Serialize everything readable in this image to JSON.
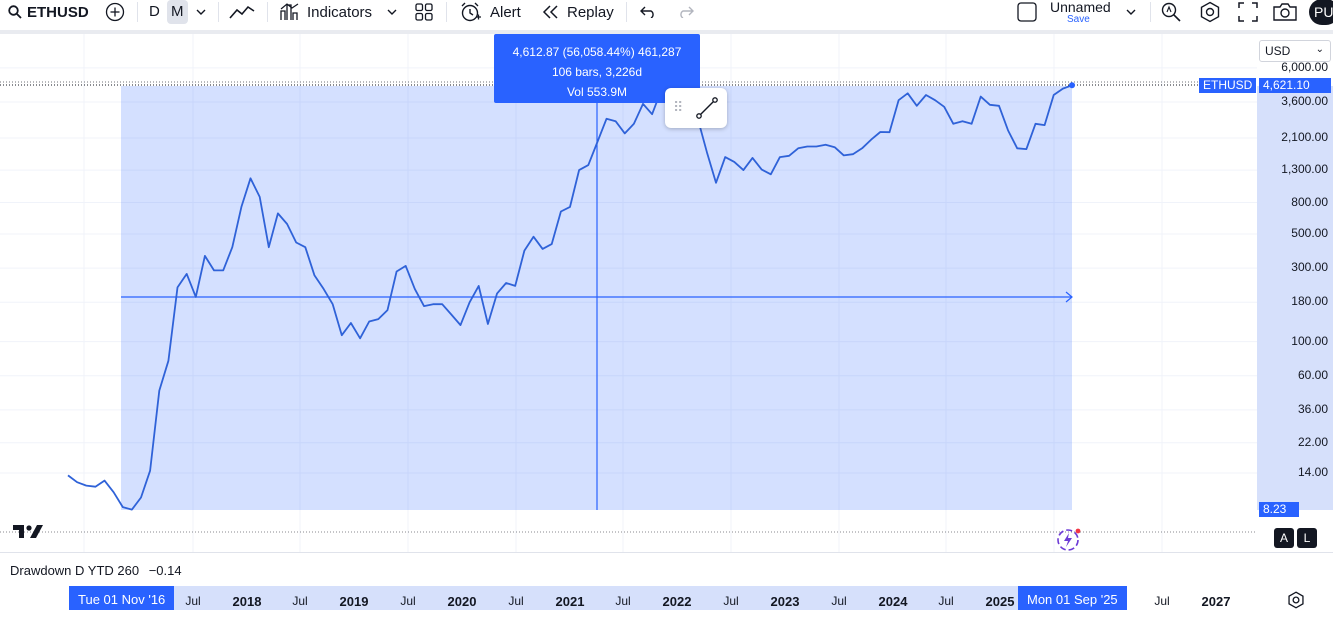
{
  "toolbar": {
    "symbol": "ETHUSD",
    "interval_d": "D",
    "interval_m": "M",
    "indicators_label": "Indicators",
    "alert_label": "Alert",
    "replay_label": "Replay",
    "layout_name": "Unnamed",
    "save_label": "Save",
    "avatar_initials": "PU"
  },
  "chart": {
    "currency": "USD",
    "symbol_tag": "ETHUSD",
    "last_price": "4,621.10",
    "low_price": "8.23",
    "accent_color": "#2962ff",
    "price_ticks": [
      "6,000.00",
      "3,600.00",
      "2,100.00",
      "1,300.00",
      "800.00",
      "500.00",
      "300.00",
      "180.00",
      "100.00",
      "60.00",
      "36.00",
      "22.00",
      "14.00"
    ],
    "scale_type": "log",
    "measure_tooltip": {
      "line1": "4,612.87 (56,058.44%) 461,287",
      "line2": "106 bars, 3,226d",
      "line3": "Vol 553.9M"
    },
    "float_toolbar_icon": "trend-line-icon",
    "auto_button": "A",
    "log_button": "L"
  },
  "indicator": {
    "name": "Drawdown D YTD 260",
    "value": "−0.14"
  },
  "time_axis": {
    "start_label": "Tue 01 Nov '16",
    "end_label": "Mon 01 Sep '25",
    "ticks": [
      {
        "label": "Jul",
        "year": false
      },
      {
        "label": "2018",
        "year": true
      },
      {
        "label": "Jul",
        "year": false
      },
      {
        "label": "2019",
        "year": true
      },
      {
        "label": "Jul",
        "year": false
      },
      {
        "label": "2020",
        "year": true
      },
      {
        "label": "Jul",
        "year": false
      },
      {
        "label": "2021",
        "year": true
      },
      {
        "label": "Jul",
        "year": false
      },
      {
        "label": "2022",
        "year": true
      },
      {
        "label": "Jul",
        "year": false
      },
      {
        "label": "2023",
        "year": true
      },
      {
        "label": "Jul",
        "year": false
      },
      {
        "label": "2024",
        "year": true
      },
      {
        "label": "Jul",
        "year": false
      },
      {
        "label": "2025",
        "year": true
      },
      {
        "label": "Jul",
        "year": false
      },
      {
        "label": "2027",
        "year": true
      }
    ]
  },
  "chart_data": {
    "type": "line",
    "series": [
      {
        "values": [
          13.5,
          12.2,
          11.6,
          11.4,
          12.5,
          10.5,
          8.4,
          8.1,
          9.7,
          14.5,
          48,
          75,
          225,
          275,
          195,
          360,
          290,
          290,
          410,
          750,
          1150,
          870,
          410,
          680,
          580,
          440,
          410,
          270,
          220,
          175,
          110,
          132,
          105,
          135,
          140,
          160,
          285,
          310,
          220,
          170,
          175,
          175,
          150,
          128,
          180,
          230,
          130,
          205,
          240,
          230,
          390,
          480,
          400,
          430,
          700,
          750,
          1300,
          1400,
          1980,
          2800,
          2700,
          2250,
          2600,
          3500,
          3000,
          4300,
          4500,
          4200,
          3800,
          2800,
          1700,
          1075,
          1580,
          1470,
          1300,
          1560,
          1310,
          1220,
          1580,
          1610,
          1800,
          1850,
          1850,
          1900,
          1830,
          1620,
          1650,
          1800,
          2050,
          2300,
          2290,
          3700,
          4100,
          3400,
          4000,
          3700,
          3350,
          2600,
          2700,
          2600,
          3900,
          3450,
          3400,
          2350,
          1800,
          1780,
          2600,
          2550,
          4000,
          4400,
          4621.1
        ]
      }
    ],
    "x_range": [
      "Dec '15",
      "Sep '25"
    ],
    "y_scale": "log",
    "ylim": [
      8.23,
      6000
    ],
    "measure_range": {
      "start_label": "Tue 01 Nov '16",
      "end_label": "Mon 01 Sep '25"
    },
    "grid": true
  }
}
